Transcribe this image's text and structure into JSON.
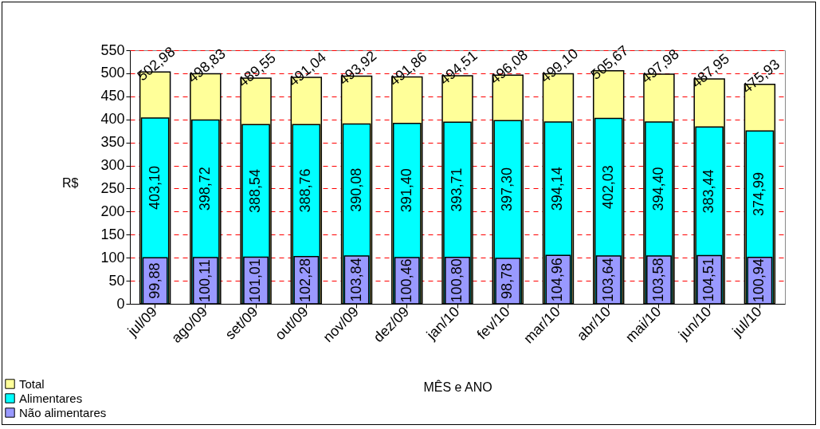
{
  "chart_data": {
    "type": "bar",
    "xlabel": "MÊS e ANO",
    "ylabel": "R$",
    "categories": [
      "jul/09",
      "ago/09",
      "set/09",
      "out/09",
      "nov/09",
      "dez/09",
      "jan/10",
      "fev/10",
      "mar/10",
      "abr/10",
      "mai/10",
      "jun/10",
      "jul/10"
    ],
    "series": [
      {
        "name": "Total",
        "color": "#ffff99",
        "values": [
          502.98,
          498.83,
          489.55,
          491.04,
          493.92,
          491.86,
          494.51,
          496.08,
          499.1,
          505.67,
          497.98,
          487.95,
          475.93
        ],
        "value_labels": [
          "502,98",
          "498,83",
          "489,55",
          "491,04",
          "493,92",
          "491,86",
          "494,51",
          "496,08",
          "499,10",
          "505,67",
          "497,98",
          "487,95",
          "475,93"
        ]
      },
      {
        "name": "Alimentares",
        "color": "#00ffff",
        "values": [
          403.1,
          398.72,
          388.54,
          388.76,
          390.08,
          391.4,
          393.71,
          397.3,
          394.14,
          402.03,
          394.4,
          383.44,
          374.99
        ],
        "value_labels": [
          "403,10",
          "398,72",
          "388,54",
          "388,76",
          "390,08",
          "391,40",
          "393,71",
          "397,30",
          "394,14",
          "402,03",
          "394,40",
          "383,44",
          "374,99"
        ]
      },
      {
        "name": "Não alimentares",
        "color": "#9999ff",
        "values": [
          99.88,
          100.11,
          101.01,
          102.28,
          103.84,
          100.46,
          100.8,
          98.78,
          104.96,
          103.64,
          103.58,
          104.51,
          100.94
        ],
        "value_labels": [
          "99,88",
          "100,11",
          "101,01",
          "102,28",
          "103,84",
          "100,46",
          "100,80",
          "98,78",
          "104,96",
          "103,64",
          "103,58",
          "104,51",
          "100,94"
        ]
      }
    ],
    "ylim": [
      0,
      550
    ],
    "yticks": [
      0,
      50,
      100,
      150,
      200,
      250,
      300,
      350,
      400,
      450,
      500,
      550
    ],
    "grid": "y",
    "legend": "bottom left"
  }
}
